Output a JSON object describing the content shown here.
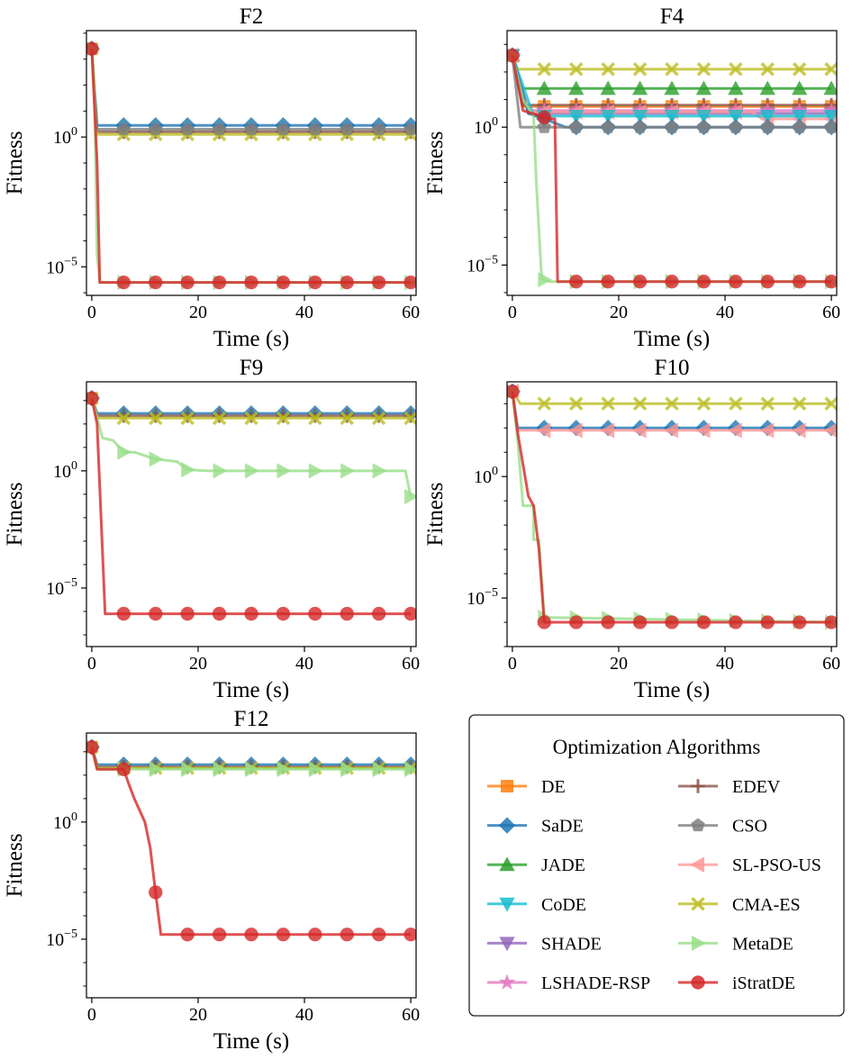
{
  "figure": {
    "legend_title": "Optimization Algorithms",
    "legend_entries": [
      {
        "name": "DE",
        "color": "#ff7f0e",
        "marker": "square"
      },
      {
        "name": "SaDE",
        "color": "#1f77b4",
        "marker": "diamond"
      },
      {
        "name": "JADE",
        "color": "#2ca02c",
        "marker": "triangle-up"
      },
      {
        "name": "CoDE",
        "color": "#17becf",
        "marker": "triangle-down"
      },
      {
        "name": "SHADE",
        "color": "#9467bd",
        "marker": "triangle-down"
      },
      {
        "name": "LSHADE-RSP",
        "color": "#e377c2",
        "marker": "star"
      },
      {
        "name": "EDEV",
        "color": "#8c564b",
        "marker": "plus"
      },
      {
        "name": "CSO",
        "color": "#7f7f7f",
        "marker": "pentagon"
      },
      {
        "name": "SL-PSO-US",
        "color": "#ff9896",
        "marker": "triangle-left"
      },
      {
        "name": "CMA-ES",
        "color": "#bcbd22",
        "marker": "x"
      },
      {
        "name": "MetaDE",
        "color": "#98df8a",
        "marker": "triangle-right"
      },
      {
        "name": "iStratDE",
        "color": "#d62728",
        "marker": "circle"
      }
    ]
  },
  "chart_data": [
    {
      "type": "line",
      "title": "F2",
      "xlabel": "Time (s)",
      "ylabel": "Fitness",
      "yscale": "log",
      "xlim": [
        -1,
        61
      ],
      "ylim_log10": [
        -6.1,
        4.1
      ],
      "xticks": [
        0,
        20,
        40,
        60
      ],
      "xtick_labels": [
        "0",
        "20",
        "40",
        "60"
      ],
      "yticks_log10": [
        0,
        -5
      ],
      "ytick_base": "10",
      "ytick_exponents": [
        "0",
        "−5"
      ],
      "series": [
        {
          "name": "SaDE",
          "points": [
            [
              0,
              3.4
            ],
            [
              1,
              0.45
            ],
            [
              60,
              0.45
            ]
          ]
        },
        {
          "name": "EDEV",
          "points": [
            [
              0,
              3.4
            ],
            [
              1,
              0.2
            ],
            [
              60,
              0.2
            ]
          ]
        },
        {
          "name": "CMA-ES",
          "points": [
            [
              0,
              3.4
            ],
            [
              1,
              0.1
            ],
            [
              60,
              0.1
            ]
          ]
        },
        {
          "name": "CSO",
          "points": [
            [
              0,
              3.4
            ],
            [
              1,
              0.3
            ],
            [
              60,
              0.3
            ]
          ]
        },
        {
          "name": "MetaDE",
          "points": [
            [
              0,
              3.4
            ],
            [
              0.5,
              2.0
            ],
            [
              1,
              -4.5
            ],
            [
              1.5,
              -5.6
            ],
            [
              60,
              -5.6
            ]
          ]
        },
        {
          "name": "iStratDE",
          "points": [
            [
              0,
              3.4
            ],
            [
              1,
              -1.0
            ],
            [
              1.5,
              -5.6
            ],
            [
              60,
              -5.6
            ]
          ]
        }
      ]
    },
    {
      "type": "line",
      "title": "F4",
      "xlabel": "Time (s)",
      "ylabel": "Fitness",
      "yscale": "log",
      "xlim": [
        -1,
        61
      ],
      "ylim_log10": [
        -6.1,
        3.5
      ],
      "xticks": [
        0,
        20,
        40,
        60
      ],
      "xtick_labels": [
        "0",
        "20",
        "40",
        "60"
      ],
      "yticks_log10": [
        0,
        -5
      ],
      "ytick_base": "10",
      "ytick_exponents": [
        "0",
        "−5"
      ],
      "series": [
        {
          "name": "CMA-ES",
          "points": [
            [
              0,
              2.6
            ],
            [
              1,
              2.1
            ],
            [
              60,
              2.1
            ]
          ]
        },
        {
          "name": "JADE",
          "points": [
            [
              0,
              2.6
            ],
            [
              1.5,
              1.4
            ],
            [
              60,
              1.4
            ]
          ]
        },
        {
          "name": "DE",
          "points": [
            [
              0,
              2.6
            ],
            [
              2,
              0.75
            ],
            [
              60,
              0.75
            ]
          ]
        },
        {
          "name": "EDEV",
          "points": [
            [
              0,
              2.6
            ],
            [
              2,
              0.8
            ],
            [
              60,
              0.8
            ]
          ]
        },
        {
          "name": "SHADE",
          "points": [
            [
              0,
              2.6
            ],
            [
              3,
              0.5
            ],
            [
              60,
              0.5
            ]
          ]
        },
        {
          "name": "LSHADE-RSP",
          "points": [
            [
              0,
              2.6
            ],
            [
              3,
              0.6
            ],
            [
              60,
              0.6
            ]
          ]
        },
        {
          "name": "SL-PSO-US",
          "points": [
            [
              0,
              2.6
            ],
            [
              3,
              0.55
            ],
            [
              45,
              0.55
            ],
            [
              47,
              0.3
            ],
            [
              60,
              0.3
            ]
          ]
        },
        {
          "name": "CoDE",
          "points": [
            [
              0,
              2.6
            ],
            [
              4,
              0.4
            ],
            [
              60,
              0.4
            ]
          ]
        },
        {
          "name": "SaDE",
          "points": [
            [
              0,
              2.6
            ],
            [
              3,
              0.5
            ],
            [
              6,
              0.3
            ],
            [
              10,
              0.0
            ],
            [
              60,
              0.0
            ]
          ]
        },
        {
          "name": "CSO",
          "points": [
            [
              0,
              2.6
            ],
            [
              1.5,
              0.0
            ],
            [
              60,
              0.0
            ]
          ]
        },
        {
          "name": "MetaDE",
          "points": [
            [
              0,
              2.6
            ],
            [
              2,
              1.0
            ],
            [
              4,
              0.4
            ],
            [
              4.5,
              -2.0
            ],
            [
              5.5,
              -5.5
            ],
            [
              7,
              -5.6
            ],
            [
              60,
              -5.6
            ]
          ]
        },
        {
          "name": "iStratDE",
          "points": [
            [
              0,
              2.6
            ],
            [
              2,
              0.6
            ],
            [
              7,
              0.3
            ],
            [
              8,
              0.3
            ],
            [
              8.5,
              -5.6
            ],
            [
              60,
              -5.6
            ]
          ]
        }
      ]
    },
    {
      "type": "line",
      "title": "F9",
      "xlabel": "Time (s)",
      "ylabel": "Fitness",
      "yscale": "log",
      "xlim": [
        -1,
        61
      ],
      "ylim_log10": [
        -7.5,
        3.8
      ],
      "xticks": [
        0,
        20,
        40,
        60
      ],
      "xtick_labels": [
        "0",
        "20",
        "40",
        "60"
      ],
      "yticks_log10": [
        0,
        -5
      ],
      "ytick_base": "10",
      "ytick_exponents": [
        "0",
        "−5"
      ],
      "series": [
        {
          "name": "SaDE",
          "points": [
            [
              0,
              3.1
            ],
            [
              1,
              2.45
            ],
            [
              60,
              2.45
            ]
          ]
        },
        {
          "name": "EDEV",
          "points": [
            [
              0,
              3.1
            ],
            [
              1,
              2.35
            ],
            [
              60,
              2.35
            ]
          ]
        },
        {
          "name": "CMA-ES",
          "points": [
            [
              0,
              3.1
            ],
            [
              1,
              2.25
            ],
            [
              60,
              2.25
            ]
          ]
        },
        {
          "name": "MetaDE",
          "points": [
            [
              0,
              3.1
            ],
            [
              1,
              2.3
            ],
            [
              2,
              1.4
            ],
            [
              4,
              1.3
            ],
            [
              6,
              0.8
            ],
            [
              8,
              0.8
            ],
            [
              12,
              0.5
            ],
            [
              16,
              0.4
            ],
            [
              18,
              0.05
            ],
            [
              22,
              0.0
            ],
            [
              59,
              0.0
            ],
            [
              60,
              -1.1
            ]
          ]
        },
        {
          "name": "iStratDE",
          "points": [
            [
              0,
              3.1
            ],
            [
              1,
              2.0
            ],
            [
              2.5,
              -6.1
            ],
            [
              60,
              -6.1
            ]
          ]
        }
      ]
    },
    {
      "type": "line",
      "title": "F10",
      "xlabel": "Time (s)",
      "ylabel": "Fitness",
      "yscale": "log",
      "xlim": [
        -1,
        61
      ],
      "ylim_log10": [
        -7.0,
        3.9
      ],
      "xticks": [
        0,
        20,
        40,
        60
      ],
      "xtick_labels": [
        "0",
        "20",
        "40",
        "60"
      ],
      "yticks_log10": [
        0,
        -5
      ],
      "ytick_base": "10",
      "ytick_exponents": [
        "0",
        "−5"
      ],
      "series": [
        {
          "name": "CMA-ES",
          "points": [
            [
              0,
              3.5
            ],
            [
              1.5,
              3.0
            ],
            [
              60,
              3.0
            ]
          ]
        },
        {
          "name": "SaDE",
          "points": [
            [
              0,
              3.5
            ],
            [
              1,
              2.0
            ],
            [
              60,
              2.0
            ]
          ]
        },
        {
          "name": "SL-PSO-US",
          "points": [
            [
              0,
              3.5
            ],
            [
              1,
              1.9
            ],
            [
              60,
              1.9
            ]
          ]
        },
        {
          "name": "MetaDE",
          "points": [
            [
              0,
              3.5
            ],
            [
              1,
              1.5
            ],
            [
              2,
              -1.2
            ],
            [
              4,
              -1.2
            ],
            [
              4,
              -2.6
            ],
            [
              5,
              -2.6
            ],
            [
              6,
              -5.8
            ],
            [
              60,
              -6.0
            ]
          ]
        },
        {
          "name": "iStratDE",
          "points": [
            [
              0,
              3.5
            ],
            [
              1,
              1.8
            ],
            [
              2,
              0.5
            ],
            [
              3,
              -0.8
            ],
            [
              4,
              -1.2
            ],
            [
              5,
              -3.0
            ],
            [
              6,
              -6.0
            ],
            [
              60,
              -6.0
            ]
          ]
        }
      ]
    },
    {
      "type": "line",
      "title": "F12",
      "xlabel": "Time (s)",
      "ylabel": "Fitness",
      "yscale": "log",
      "xlim": [
        -1,
        61
      ],
      "ylim_log10": [
        -7.5,
        3.8
      ],
      "xticks": [
        0,
        20,
        40,
        60
      ],
      "xtick_labels": [
        "0",
        "20",
        "40",
        "60"
      ],
      "yticks_log10": [
        0,
        -5
      ],
      "ytick_base": "10",
      "ytick_exponents": [
        "0",
        "−5"
      ],
      "series": [
        {
          "name": "SaDE",
          "points": [
            [
              0,
              3.2
            ],
            [
              1,
              2.45
            ],
            [
              60,
              2.45
            ]
          ]
        },
        {
          "name": "EDEV",
          "points": [
            [
              0,
              3.2
            ],
            [
              1,
              2.35
            ],
            [
              60,
              2.35
            ]
          ]
        },
        {
          "name": "CMA-ES",
          "points": [
            [
              0,
              3.2
            ],
            [
              1,
              2.3
            ],
            [
              60,
              2.3
            ]
          ]
        },
        {
          "name": "MetaDE",
          "points": [
            [
              0,
              3.2
            ],
            [
              1,
              2.25
            ],
            [
              60,
              2.25
            ]
          ]
        },
        {
          "name": "iStratDE",
          "points": [
            [
              0,
              3.2
            ],
            [
              1,
              2.25
            ],
            [
              6,
              2.25
            ],
            [
              7,
              1.6
            ],
            [
              8,
              1.0
            ],
            [
              9,
              0.5
            ],
            [
              10,
              0.0
            ],
            [
              11,
              -1.1
            ],
            [
              12,
              -3.0
            ],
            [
              13,
              -4.8
            ],
            [
              60,
              -4.8
            ]
          ]
        }
      ]
    }
  ]
}
